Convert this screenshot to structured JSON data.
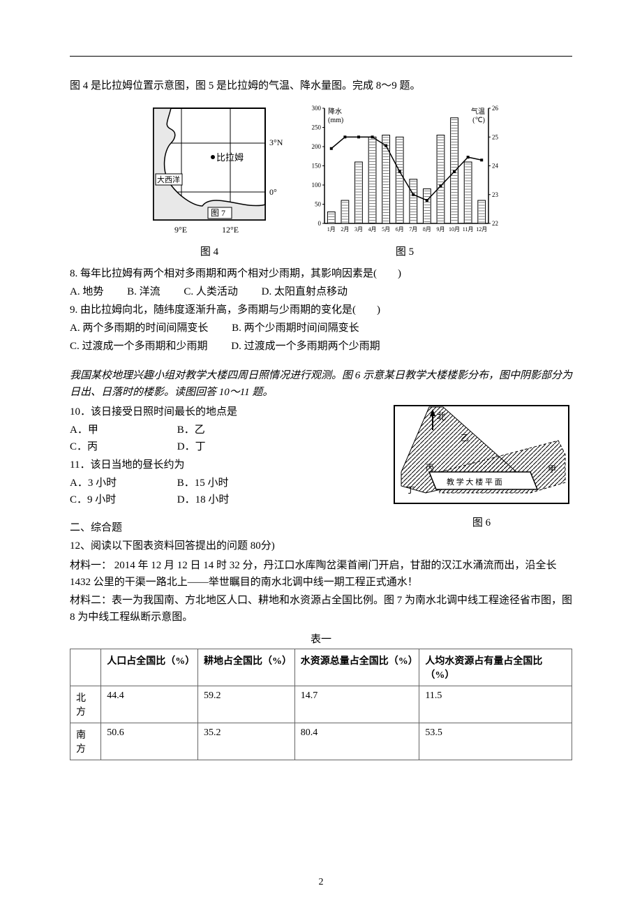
{
  "intro_fig": "图 4 是比拉姆位置示意图，图 5 是比拉姆的气温、降水量图。完成 8～9 题。",
  "map": {
    "atlantic": "大西洋",
    "city": "比拉姆",
    "fig7": "图 7",
    "lat1": "3°N",
    "lat2": "0°",
    "lon1": "9°E",
    "lon2": "12°E",
    "caption": "图 4",
    "border_color": "#000000",
    "water_color": "#e0e0e0"
  },
  "chart": {
    "y_precip_label": "降水\n(mm)",
    "y_temp_label": "气温\n(℃)",
    "months": [
      "1月",
      "2月",
      "3月",
      "4月",
      "5月",
      "6月",
      "7月",
      "8月",
      "9月",
      "10月",
      "11月",
      "12月"
    ],
    "precip_values": [
      30,
      60,
      160,
      225,
      230,
      225,
      115,
      90,
      230,
      275,
      160,
      60
    ],
    "temp_values": [
      24.6,
      25.0,
      25.0,
      25.0,
      24.7,
      23.8,
      23.0,
      22.8,
      23.3,
      23.8,
      24.3,
      24.2
    ],
    "precip_ylim": [
      0,
      300
    ],
    "precip_ticks": [
      0,
      50,
      100,
      150,
      200,
      250,
      300
    ],
    "temp_ylim": [
      22,
      26
    ],
    "temp_ticks": [
      22,
      23,
      24,
      25,
      26
    ],
    "bar_fill": "#ffffff",
    "bar_stroke": "#000000",
    "line_color": "#000000",
    "caption": "图 5"
  },
  "q8": {
    "stem": "8. 每年比拉姆有两个相对多雨期和两个相对少雨期，其影响因素是(　　)",
    "opts": {
      "A": "A. 地势",
      "B": "B. 洋流",
      "C": "C. 人类活动",
      "D": "D. 太阳直射点移动"
    }
  },
  "q9": {
    "stem": "9. 由比拉姆向北，随纬度逐渐升高，多雨期与少雨期的变化是(　　)",
    "opts": {
      "A": "A. 两个多雨期的时间间隔变长",
      "B": "B. 两个少雨期时间间隔变长",
      "C": "C. 过渡成一个多雨期和少雨期",
      "D": "D. 过渡成一个多雨期两个少雨期"
    }
  },
  "intro_q10": "我国某校地理兴趣小组对教学大楼四周日照情况进行观测。图 6 示意某日教学大楼楼影分布，图中阴影部分为日出、日落时的楼影。读图回答 10～11 题。",
  "q10": {
    "stem": "10．该日接受日照时间最长的地点是",
    "opts": {
      "A": "A．甲",
      "B": "B．乙",
      "C": "C．丙",
      "D": "D．丁"
    }
  },
  "q11": {
    "stem": "11．该日当地的昼长约为",
    "opts": {
      "A": "A．3 小时",
      "B": "B．15 小时",
      "C": "C．9 小时",
      "D": "D．18 小时"
    }
  },
  "fig6": {
    "north": "北",
    "labels": {
      "jia": "甲",
      "yi": "乙",
      "bing": "丙",
      "ding": "丁"
    },
    "building": "教 学 大 楼 平 面",
    "caption": "图 6",
    "hatch_color": "#000000"
  },
  "section2": "二、综合题",
  "q12_lead": "12、阅读以下图表资料回答提出的问题 80分)",
  "material1": "材料一：  2014 年 12 月 12 日 14 时 32 分，丹江口水库陶岔渠首闸门开启，甘甜的汉江水涌流而出，沿全长 1432 公里的干渠一路北上——举世瞩目的南水北调中线一期工程正式通水！",
  "material2": "材料二：表一为我国南、方北地区人口、耕地和水资源占全国比例。图 7 为南水北调中线工程途径省市图，图 8 为中线工程纵断示意图。",
  "table": {
    "title": "表一",
    "cols": [
      "",
      "人口占全国比（%）",
      "耕地占全国比（%）",
      "水资源总量占全国比（%）",
      "人均水资源占有量占全国比（%）"
    ],
    "rows": [
      [
        "北方",
        "44.4",
        "59.2",
        "14.7",
        "11.5"
      ],
      [
        "南方",
        "50.6",
        "35.2",
        "80.4",
        "53.5"
      ]
    ]
  },
  "page_number": "2"
}
